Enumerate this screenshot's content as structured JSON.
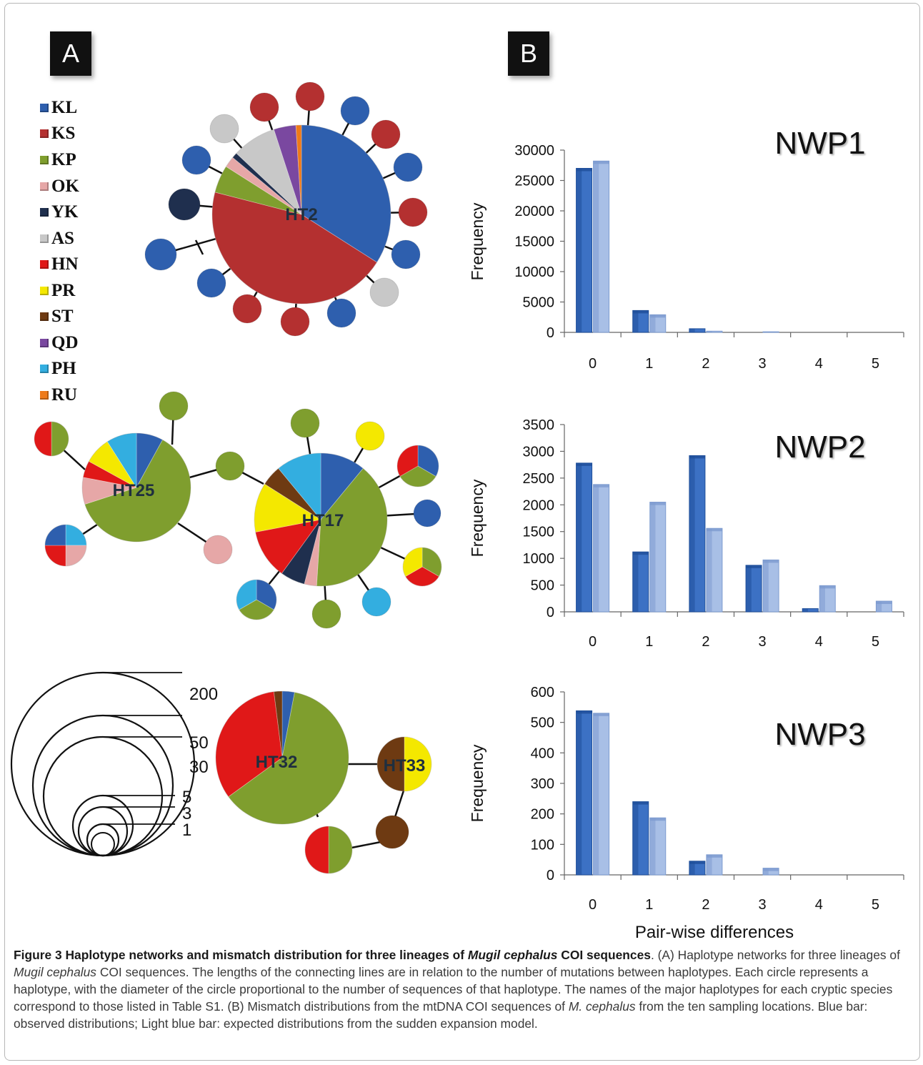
{
  "panel_a_label": "A",
  "panel_b_label": "B",
  "legend": [
    {
      "code": "KL",
      "color": "#2e5fae"
    },
    {
      "code": "KS",
      "color": "#b43030"
    },
    {
      "code": "KP",
      "color": "#7f9e2e"
    },
    {
      "code": "OK",
      "color": "#e6a7a7"
    },
    {
      "code": "YK",
      "color": "#1f2f4e"
    },
    {
      "code": "AS",
      "color": "#c8c8c8"
    },
    {
      "code": "HN",
      "color": "#e01818"
    },
    {
      "code": "PR",
      "color": "#f4e800"
    },
    {
      "code": "ST",
      "color": "#6e3a12"
    },
    {
      "code": "QD",
      "color": "#7a48a0"
    },
    {
      "code": "PH",
      "color": "#33aee0"
    },
    {
      "code": "RU",
      "color": "#ee7a1a"
    }
  ],
  "haplotypes": {
    "ht2": "HT2",
    "ht25": "HT25",
    "ht17": "HT17",
    "ht32": "HT32",
    "ht33": "HT33"
  },
  "size_scale": [
    "200",
    "50",
    "30",
    "5",
    "3",
    "1"
  ],
  "chart_data": [
    {
      "type": "bar",
      "title": "NWP1",
      "ylabel": "Frequency",
      "categories": [
        "0",
        "1",
        "2",
        "3",
        "4",
        "5"
      ],
      "ylim": [
        0,
        30000
      ],
      "yticks": [
        "0",
        "5000",
        "10000",
        "15000",
        "20000",
        "25000",
        "30000"
      ],
      "series": [
        {
          "values": [
            27000,
            3600,
            600,
            0,
            0,
            0
          ]
        },
        {
          "values": [
            28200,
            2900,
            200,
            100,
            0,
            0
          ]
        }
      ]
    },
    {
      "type": "bar",
      "title": "NWP2",
      "ylabel": "Frequency",
      "categories": [
        "0",
        "1",
        "2",
        "3",
        "4",
        "5"
      ],
      "ylim": [
        0,
        3500
      ],
      "yticks": [
        "0",
        "500",
        "1000",
        "1500",
        "2000",
        "2500",
        "3000",
        "3500"
      ],
      "series": [
        {
          "values": [
            2780,
            1120,
            2920,
            870,
            60,
            0
          ]
        },
        {
          "values": [
            2380,
            2050,
            1560,
            970,
            490,
            200
          ]
        }
      ]
    },
    {
      "type": "bar",
      "title": "NWP3",
      "ylabel": "Frequency",
      "xlabel": "Pair-wise differences",
      "categories": [
        "0",
        "1",
        "2",
        "3",
        "4",
        "5"
      ],
      "ylim": [
        0,
        600
      ],
      "yticks": [
        "0",
        "100",
        "200",
        "300",
        "400",
        "500",
        "600"
      ],
      "series": [
        {
          "values": [
            538,
            240,
            45,
            0,
            0,
            0
          ]
        },
        {
          "values": [
            530,
            187,
            66,
            22,
            0,
            0
          ]
        }
      ]
    }
  ],
  "caption": {
    "title": "Figure 3 Haplotype networks and mismatch distribution for three lineages of ",
    "title_species": "Mugil cephalus",
    "title_end": " COI sequences",
    "p1": ". (A) Haplotype networks for three lineages of ",
    "p1_species": "Mugil cephalus",
    "p2": " COI sequences. The lengths of the connecting lines are in relation to the number of mutations between haplotypes. Each circle represents a haplotype, with the diameter of the circle proportional to the number of sequences of that haplotype. The names of the major haplotypes for each cryptic species correspond to those listed in Table S1. (B) Mismatch distributions from the mtDNA COI sequences of ",
    "p2_species": "M. cephalus",
    "p3": " from the ten sampling locations. Blue bar: observed distributions; Light blue bar: expected distributions from the sudden expansion model."
  }
}
